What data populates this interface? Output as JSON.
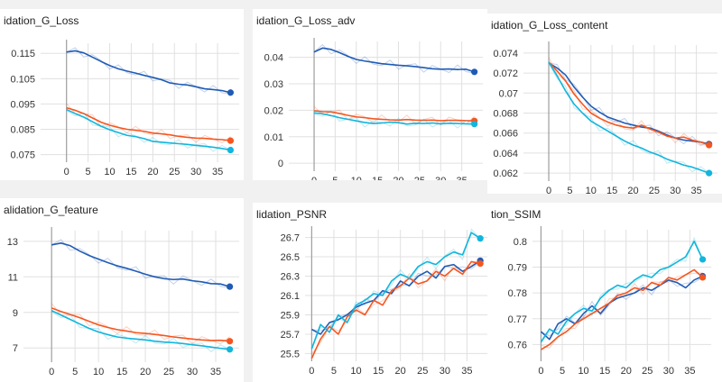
{
  "colors": {
    "dark_blue": "#1f5bb5",
    "orange": "#f5561f",
    "cyan": "#12b5dc",
    "grid": "#e0e0e0",
    "axis": "#9e9e9e"
  },
  "chart_data": [
    {
      "type": "line",
      "title": "idation_G_Loss",
      "x_ticks": [
        "0",
        "5",
        "10",
        "15",
        "20",
        "25",
        "30",
        "35"
      ],
      "y_ticks": [
        "0.115",
        "0.105",
        "0.095",
        "0.085",
        "0.075"
      ],
      "xlim": [
        -6,
        40
      ],
      "ylim": [
        0.072,
        0.119
      ],
      "grid": true,
      "series": [
        {
          "color": "#1f5bb5",
          "x": [
            0,
            2,
            4,
            6,
            8,
            10,
            12,
            14,
            16,
            18,
            20,
            22,
            24,
            26,
            28,
            30,
            32,
            34,
            36,
            38
          ],
          "y": [
            0.1155,
            0.116,
            0.1152,
            0.1135,
            0.1118,
            0.1102,
            0.1089,
            0.108,
            0.1072,
            0.1063,
            0.1055,
            0.1046,
            0.1033,
            0.1028,
            0.1025,
            0.1018,
            0.101,
            0.1007,
            0.1003,
            0.0995
          ]
        },
        {
          "color": "#f5561f",
          "x": [
            0,
            2,
            4,
            6,
            8,
            10,
            12,
            14,
            16,
            18,
            20,
            22,
            24,
            26,
            28,
            30,
            32,
            34,
            36,
            38
          ],
          "y": [
            0.0935,
            0.0925,
            0.0912,
            0.0895,
            0.0878,
            0.0866,
            0.0857,
            0.085,
            0.0846,
            0.0842,
            0.0835,
            0.0832,
            0.0828,
            0.0822,
            0.0818,
            0.0815,
            0.0814,
            0.0811,
            0.0809,
            0.0805
          ]
        },
        {
          "color": "#12b5dc",
          "x": [
            0,
            2,
            4,
            6,
            8,
            10,
            12,
            14,
            16,
            18,
            20,
            22,
            24,
            26,
            28,
            30,
            32,
            34,
            36,
            38
          ],
          "y": [
            0.0928,
            0.0912,
            0.0898,
            0.088,
            0.0862,
            0.0848,
            0.0837,
            0.0826,
            0.0821,
            0.0813,
            0.0802,
            0.0799,
            0.0796,
            0.0793,
            0.079,
            0.0786,
            0.0783,
            0.0779,
            0.0774,
            0.0768
          ]
        }
      ]
    },
    {
      "type": "line",
      "title": "idation_G_Loss_adv",
      "x_ticks": [
        "0",
        "5",
        "10",
        "15",
        "20",
        "25",
        "30",
        "35"
      ],
      "y_ticks": [
        "0.04",
        "0.03",
        "0.02",
        "0.01",
        "0"
      ],
      "xlim": [
        -6,
        40
      ],
      "ylim": [
        -0.003,
        0.046
      ],
      "grid": true,
      "series": [
        {
          "color": "#1f5bb5",
          "x": [
            0,
            2,
            4,
            6,
            8,
            10,
            12,
            14,
            16,
            18,
            20,
            22,
            24,
            26,
            28,
            30,
            32,
            34,
            36,
            38
          ],
          "y": [
            0.042,
            0.0435,
            0.043,
            0.0418,
            0.0404,
            0.0392,
            0.0386,
            0.0381,
            0.0376,
            0.0373,
            0.037,
            0.0368,
            0.0365,
            0.0361,
            0.0357,
            0.0355,
            0.0356,
            0.0354,
            0.0355,
            0.0345
          ]
        },
        {
          "color": "#f5561f",
          "x": [
            0,
            2,
            4,
            6,
            8,
            10,
            12,
            14,
            16,
            18,
            20,
            22,
            24,
            26,
            28,
            30,
            32,
            34,
            36,
            38
          ],
          "y": [
            0.0198,
            0.0195,
            0.0194,
            0.0188,
            0.0181,
            0.0175,
            0.0172,
            0.0168,
            0.0166,
            0.0164,
            0.0163,
            0.0165,
            0.0163,
            0.0162,
            0.0163,
            0.0161,
            0.0162,
            0.0162,
            0.0161,
            0.016
          ]
        },
        {
          "color": "#12b5dc",
          "x": [
            0,
            2,
            4,
            6,
            8,
            10,
            12,
            14,
            16,
            18,
            20,
            22,
            24,
            26,
            28,
            30,
            32,
            34,
            36,
            38
          ],
          "y": [
            0.019,
            0.0187,
            0.018,
            0.0172,
            0.0166,
            0.016,
            0.0154,
            0.015,
            0.0152,
            0.0155,
            0.0153,
            0.0148,
            0.0151,
            0.015,
            0.0152,
            0.0149,
            0.0151,
            0.015,
            0.0149,
            0.0148
          ]
        }
      ]
    },
    {
      "type": "line",
      "title": "idation_G_Loss_content",
      "x_ticks": [
        "0",
        "5",
        "10",
        "15",
        "20",
        "25",
        "30",
        "35"
      ],
      "y_ticks": [
        "0.074",
        "0.072",
        "0.07",
        "0.068",
        "0.066",
        "0.064",
        "0.062"
      ],
      "xlim": [
        -6,
        40
      ],
      "ylim": [
        0.0612,
        0.0748
      ],
      "grid": true,
      "series": [
        {
          "color": "#1f5bb5",
          "x": [
            0,
            2,
            4,
            6,
            8,
            10,
            12,
            14,
            16,
            18,
            20,
            22,
            24,
            26,
            28,
            30,
            32,
            34,
            36,
            38
          ],
          "y": [
            0.073,
            0.0725,
            0.0718,
            0.0706,
            0.0696,
            0.0687,
            0.0681,
            0.0676,
            0.0673,
            0.067,
            0.0668,
            0.0666,
            0.0665,
            0.0662,
            0.0658,
            0.0655,
            0.0653,
            0.0652,
            0.0651,
            0.0649
          ]
        },
        {
          "color": "#f5561f",
          "x": [
            0,
            2,
            4,
            6,
            8,
            10,
            12,
            14,
            16,
            18,
            20,
            22,
            24,
            26,
            28,
            30,
            32,
            34,
            36,
            38
          ],
          "y": [
            0.0731,
            0.0722,
            0.0712,
            0.0699,
            0.0689,
            0.068,
            0.0675,
            0.0671,
            0.0668,
            0.0666,
            0.0665,
            0.0668,
            0.0664,
            0.0661,
            0.0657,
            0.0655,
            0.0656,
            0.0653,
            0.0651,
            0.0648
          ]
        },
        {
          "color": "#12b5dc",
          "x": [
            0,
            2,
            4,
            6,
            8,
            10,
            12,
            14,
            16,
            18,
            20,
            22,
            24,
            26,
            28,
            30,
            32,
            34,
            36,
            38
          ],
          "y": [
            0.0731,
            0.0717,
            0.0702,
            0.0689,
            0.068,
            0.0672,
            0.0667,
            0.0662,
            0.0657,
            0.0652,
            0.0648,
            0.0645,
            0.0641,
            0.0638,
            0.0634,
            0.0631,
            0.0628,
            0.0626,
            0.0623,
            0.062
          ]
        }
      ]
    },
    {
      "type": "line",
      "title": "alidation_G_feature",
      "x_ticks": [
        "0",
        "5",
        "10",
        "15",
        "20",
        "25",
        "30",
        "35"
      ],
      "y_ticks": [
        "13",
        "11",
        "9",
        "7"
      ],
      "xlim": [
        -6,
        40
      ],
      "ylim": [
        6.2,
        13.6
      ],
      "grid": true,
      "series": [
        {
          "color": "#1f5bb5",
          "x": [
            0,
            2,
            4,
            6,
            8,
            10,
            12,
            14,
            16,
            18,
            20,
            22,
            24,
            26,
            28,
            30,
            32,
            34,
            36,
            38
          ],
          "y": [
            12.8,
            12.9,
            12.75,
            12.45,
            12.2,
            12.0,
            11.8,
            11.62,
            11.48,
            11.32,
            11.15,
            11.0,
            10.9,
            10.85,
            10.88,
            10.78,
            10.72,
            10.62,
            10.6,
            10.45
          ]
        },
        {
          "color": "#f5561f",
          "x": [
            0,
            2,
            4,
            6,
            8,
            10,
            12,
            14,
            16,
            18,
            20,
            22,
            24,
            26,
            28,
            30,
            32,
            34,
            36,
            38
          ],
          "y": [
            9.25,
            9.05,
            8.88,
            8.7,
            8.5,
            8.3,
            8.15,
            8.03,
            7.95,
            7.86,
            7.82,
            7.76,
            7.7,
            7.62,
            7.56,
            7.5,
            7.45,
            7.42,
            7.43,
            7.38
          ]
        },
        {
          "color": "#12b5dc",
          "x": [
            0,
            2,
            4,
            6,
            8,
            10,
            12,
            14,
            16,
            18,
            20,
            22,
            24,
            26,
            28,
            30,
            32,
            34,
            36,
            38
          ],
          "y": [
            9.1,
            8.85,
            8.6,
            8.35,
            8.1,
            7.9,
            7.75,
            7.62,
            7.55,
            7.5,
            7.45,
            7.38,
            7.33,
            7.3,
            7.25,
            7.18,
            7.12,
            7.05,
            6.98,
            6.92
          ]
        }
      ]
    },
    {
      "type": "line",
      "title": "lidation_PSNR",
      "x_ticks": [
        "0",
        "5",
        "10",
        "15",
        "20",
        "25",
        "30",
        "35"
      ],
      "y_ticks": [
        "26.7",
        "26.5",
        "26.3",
        "26.1",
        "25.9",
        "25.7",
        "25.5"
      ],
      "xlim": [
        -1.5,
        40
      ],
      "ylim": [
        25.42,
        26.78
      ],
      "grid": true,
      "series": [
        {
          "color": "#1f5bb5",
          "x": [
            0,
            2,
            4,
            6,
            8,
            10,
            12,
            14,
            16,
            18,
            20,
            22,
            24,
            26,
            28,
            30,
            32,
            34,
            36,
            38
          ],
          "y": [
            25.75,
            25.7,
            25.82,
            25.85,
            25.9,
            25.98,
            26.02,
            26.05,
            26.15,
            26.12,
            26.25,
            26.2,
            26.3,
            26.35,
            26.28,
            26.4,
            26.42,
            26.35,
            26.4,
            26.46
          ]
        },
        {
          "color": "#f5561f",
          "x": [
            0,
            2,
            4,
            6,
            8,
            10,
            12,
            14,
            16,
            18,
            20,
            22,
            24,
            26,
            28,
            30,
            32,
            34,
            36,
            38
          ],
          "y": [
            25.45,
            25.65,
            25.78,
            25.7,
            25.88,
            25.95,
            25.9,
            26.05,
            26.0,
            26.15,
            26.2,
            26.28,
            26.22,
            26.25,
            26.35,
            26.3,
            26.38,
            26.32,
            26.45,
            26.43
          ]
        },
        {
          "color": "#12b5dc",
          "x": [
            0,
            2,
            4,
            6,
            8,
            10,
            12,
            14,
            16,
            18,
            20,
            22,
            24,
            26,
            28,
            30,
            32,
            34,
            36,
            38
          ],
          "y": [
            25.55,
            25.8,
            25.72,
            25.9,
            25.82,
            26.0,
            26.05,
            26.12,
            26.1,
            26.25,
            26.32,
            26.28,
            26.4,
            26.45,
            26.42,
            26.5,
            26.55,
            26.52,
            26.75,
            26.69
          ]
        }
      ]
    },
    {
      "type": "line",
      "title": "tion_SSIM",
      "x_ticks": [
        "0",
        "5",
        "10",
        "15",
        "20",
        "25",
        "30",
        "35"
      ],
      "y_ticks": [
        "0.8",
        "0.79",
        "0.78",
        "0.77",
        "0.76"
      ],
      "xlim": [
        -2,
        40
      ],
      "ylim": [
        0.7535,
        0.8045
      ],
      "grid": true,
      "series": [
        {
          "color": "#1f5bb5",
          "x": [
            0,
            2,
            4,
            6,
            8,
            10,
            12,
            14,
            16,
            18,
            20,
            22,
            24,
            26,
            28,
            30,
            32,
            34,
            36,
            38
          ],
          "y": [
            0.765,
            0.762,
            0.768,
            0.77,
            0.768,
            0.772,
            0.775,
            0.772,
            0.776,
            0.778,
            0.779,
            0.78,
            0.782,
            0.781,
            0.783,
            0.785,
            0.784,
            0.782,
            0.785,
            0.7865
          ]
        },
        {
          "color": "#f5561f",
          "x": [
            0,
            2,
            4,
            6,
            8,
            10,
            12,
            14,
            16,
            18,
            20,
            22,
            24,
            26,
            28,
            30,
            32,
            34,
            36,
            38
          ],
          "y": [
            0.758,
            0.76,
            0.763,
            0.765,
            0.768,
            0.77,
            0.772,
            0.774,
            0.776,
            0.779,
            0.78,
            0.782,
            0.781,
            0.784,
            0.783,
            0.786,
            0.785,
            0.787,
            0.789,
            0.786
          ]
        },
        {
          "color": "#12b5dc",
          "x": [
            0,
            2,
            4,
            6,
            8,
            10,
            12,
            14,
            16,
            18,
            20,
            22,
            24,
            26,
            28,
            30,
            32,
            34,
            36,
            38
          ],
          "y": [
            0.761,
            0.766,
            0.764,
            0.769,
            0.772,
            0.774,
            0.773,
            0.778,
            0.781,
            0.783,
            0.782,
            0.785,
            0.787,
            0.786,
            0.789,
            0.79,
            0.792,
            0.794,
            0.8,
            0.793
          ]
        }
      ]
    }
  ]
}
